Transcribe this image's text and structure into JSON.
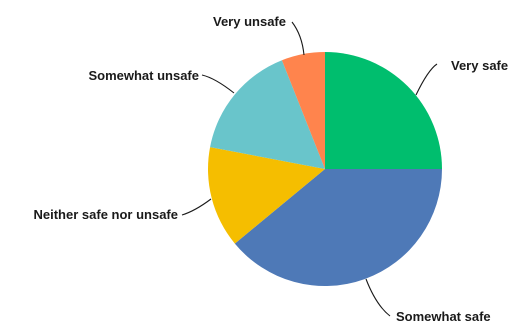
{
  "chart_data": {
    "type": "pie",
    "title": "",
    "slices": [
      {
        "label": "Very safe",
        "value": 25,
        "color": "#00BE6E"
      },
      {
        "label": "Somewhat safe",
        "value": 39,
        "color": "#4E79B7"
      },
      {
        "label": "Neither safe nor unsafe",
        "value": 14,
        "color": "#F5BE00"
      },
      {
        "label": "Somewhat unsafe",
        "value": 16,
        "color": "#69C5CB"
      },
      {
        "label": "Very unsafe",
        "value": 6,
        "color": "#FF844D"
      }
    ]
  }
}
